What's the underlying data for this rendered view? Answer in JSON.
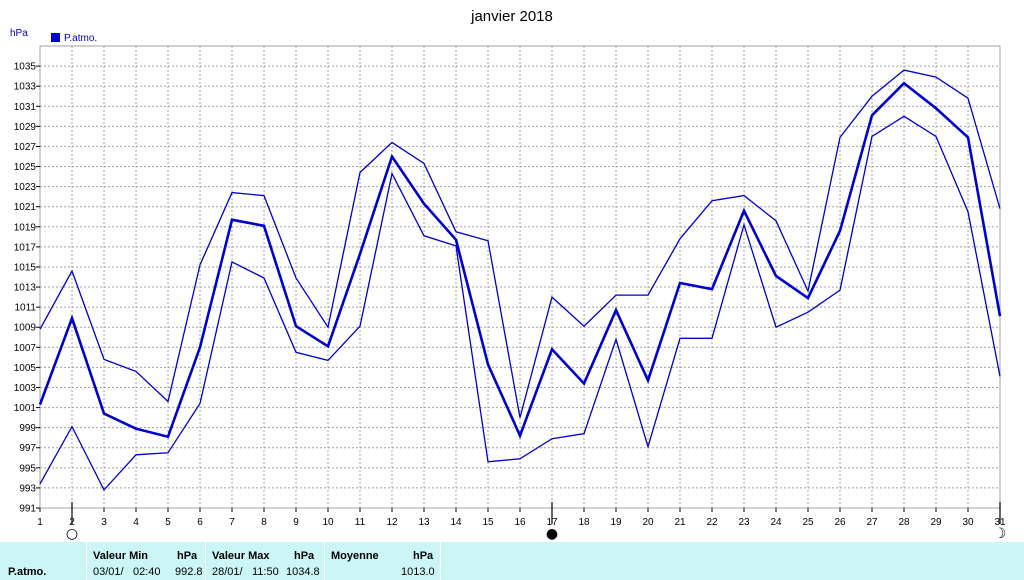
{
  "chart_data": {
    "type": "line",
    "title": "janvier 2018",
    "ylabel": "hPa",
    "ylim": [
      991,
      1037
    ],
    "yticks": [
      991,
      993,
      995,
      997,
      999,
      1001,
      1003,
      1005,
      1007,
      1009,
      1011,
      1013,
      1015,
      1017,
      1019,
      1021,
      1023,
      1025,
      1027,
      1029,
      1031,
      1033,
      1035
    ],
    "x": [
      1,
      2,
      3,
      4,
      5,
      6,
      7,
      8,
      9,
      10,
      11,
      12,
      13,
      14,
      15,
      16,
      17,
      18,
      19,
      20,
      21,
      22,
      23,
      24,
      25,
      26,
      27,
      28,
      29,
      30,
      31
    ],
    "legend": [
      "P.atmo."
    ],
    "grid": true,
    "legend_position": "top-left",
    "series": [
      {
        "name": "P.atmo.",
        "role": "max",
        "values": [
          1008.8,
          1014.6,
          1005.8,
          1004.6,
          1001.6,
          1015.2,
          1022.4,
          1022.1,
          1013.9,
          1009.0,
          1024.4,
          1027.4,
          1025.3,
          1018.5,
          1017.6,
          1000.0,
          1012.0,
          1009.1,
          1012.2,
          1012.2,
          1017.8,
          1021.6,
          1022.1,
          1019.6,
          1012.6,
          1027.9,
          1032.0,
          1034.6,
          1033.9,
          1031.8,
          1020.8
        ]
      },
      {
        "name": "P.atmo.",
        "role": "mean",
        "values": [
          1001.3,
          1009.9,
          1000.4,
          998.9,
          998.1,
          1007.0,
          1019.7,
          1019.1,
          1009.1,
          1007.1,
          1016.3,
          1026.0,
          1021.3,
          1017.7,
          1005.3,
          998.2,
          1006.8,
          1003.4,
          1010.7,
          1003.7,
          1013.4,
          1012.8,
          1020.6,
          1014.1,
          1011.9,
          1018.6,
          1030.1,
          1033.3,
          1030.8,
          1027.9,
          1010.1
        ]
      },
      {
        "name": "P.atmo.",
        "role": "min",
        "values": [
          993.4,
          999.1,
          992.8,
          996.3,
          996.5,
          1001.4,
          1015.5,
          1013.9,
          1006.5,
          1005.7,
          1009.1,
          1024.3,
          1018.1,
          1017.1,
          995.6,
          995.9,
          997.9,
          998.4,
          1007.8,
          997.1,
          1007.9,
          1007.9,
          1019.2,
          1009.0,
          1010.5,
          1012.7,
          1028.0,
          1030.0,
          1028.0,
          1020.5,
          1004.1
        ]
      }
    ],
    "markers": [
      {
        "day": 2,
        "symbol": "○"
      },
      {
        "day": 17,
        "symbol": "●"
      },
      {
        "day": 31,
        "symbol": "☽"
      }
    ],
    "colors": {
      "line": "#0000cc",
      "grid": "#a0a0a0",
      "stats_bg": "#ccf5f5"
    }
  },
  "stats": {
    "row_label": "P.atmo.",
    "min": {
      "header": "Valeur Min",
      "unit": "hPa",
      "date": "03/01/",
      "time": "02:40",
      "value": "992.8"
    },
    "max": {
      "header": "Valeur Max",
      "unit": "hPa",
      "date": "28/01/",
      "time": "11:50",
      "value": "1034.8"
    },
    "mean": {
      "header": "Moyenne",
      "unit": "hPa",
      "value": "1013.0"
    }
  }
}
